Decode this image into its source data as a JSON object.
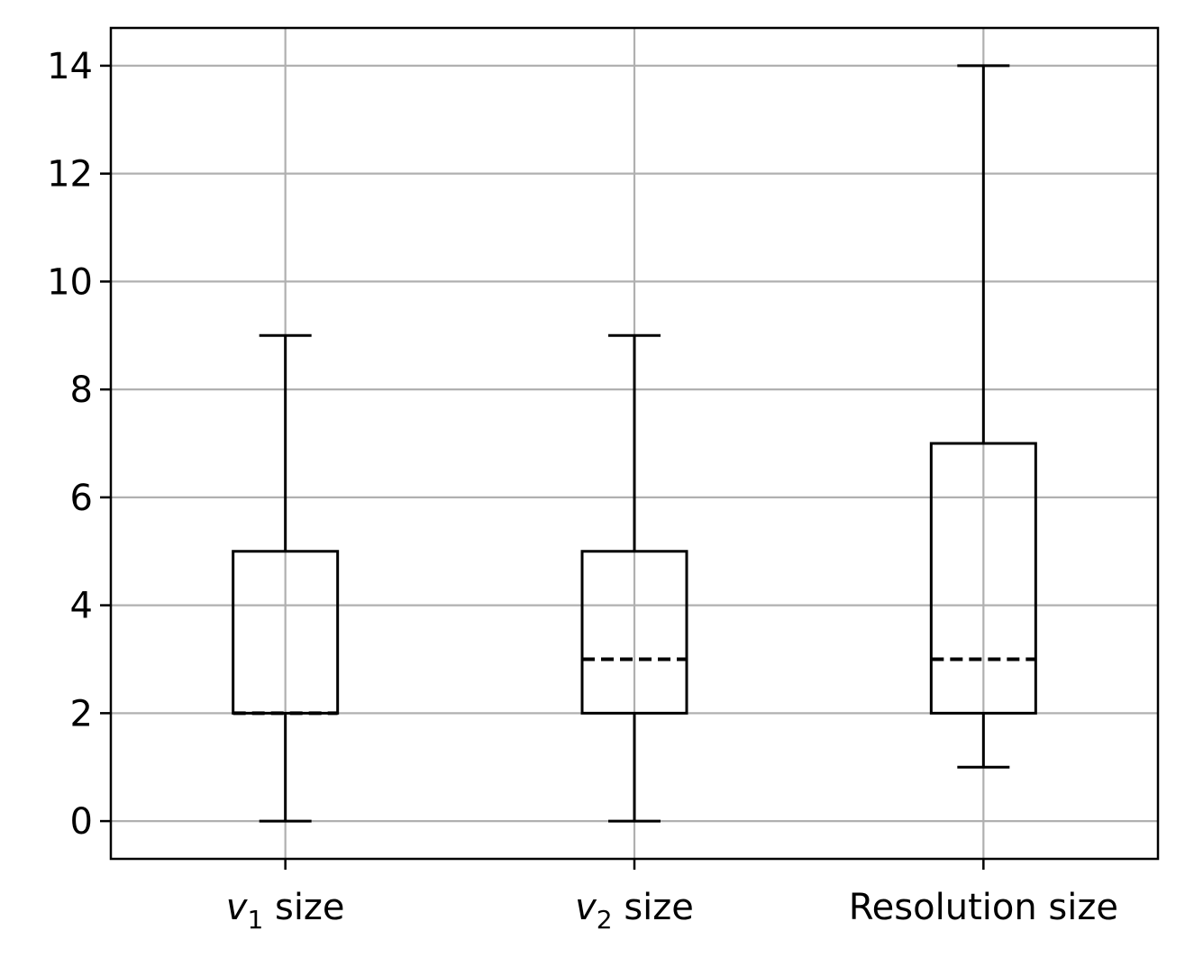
{
  "chart_data": {
    "type": "box",
    "title": "",
    "xlabel": "",
    "ylabel": "",
    "ylim": [
      -0.7,
      14.7
    ],
    "yticks": [
      0,
      2,
      4,
      6,
      8,
      10,
      12,
      14
    ],
    "grid": true,
    "legend": "none",
    "colors": {
      "box": "#000000",
      "grid": "#b0b0b0",
      "median": "#000000"
    },
    "categories": [
      {
        "label_var": "v",
        "label_sub": "1",
        "label_rest": " size"
      },
      {
        "label_var": "v",
        "label_sub": "2",
        "label_rest": " size"
      },
      {
        "label_var": "",
        "label_sub": "",
        "label_rest": "Resolution size"
      }
    ],
    "boxes": [
      {
        "whisker_low": 0,
        "q1": 2,
        "median": 2,
        "q3": 5,
        "whisker_high": 9
      },
      {
        "whisker_low": 0,
        "q1": 2,
        "median": 3,
        "q3": 5,
        "whisker_high": 9
      },
      {
        "whisker_low": 1,
        "q1": 2,
        "median": 3,
        "q3": 7,
        "whisker_high": 14
      }
    ]
  }
}
